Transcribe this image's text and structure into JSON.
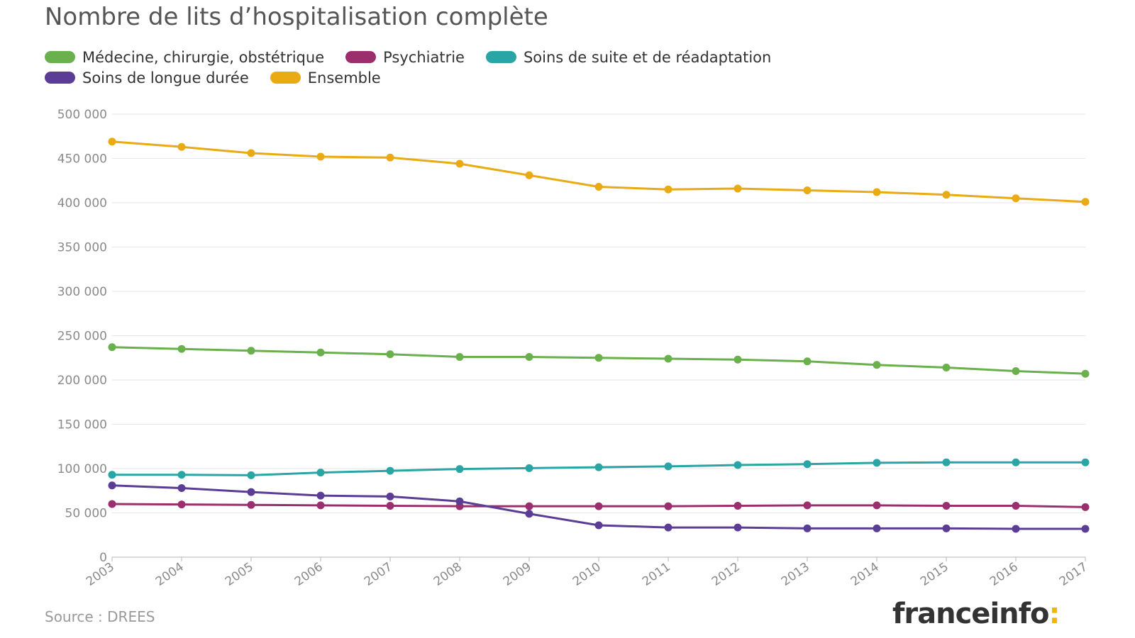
{
  "chart_data": {
    "type": "line",
    "title": "Nombre de lits d’hospitalisation complète",
    "x": [
      "2003",
      "2004",
      "2005",
      "2006",
      "2007",
      "2008",
      "2009",
      "2010",
      "2011",
      "2012",
      "2013",
      "2014",
      "2015",
      "2016",
      "2017"
    ],
    "ylim": [
      0,
      500000
    ],
    "yticks": [
      0,
      50000,
      100000,
      150000,
      200000,
      250000,
      300000,
      350000,
      400000,
      450000,
      500000
    ],
    "ytick_labels": [
      "0",
      "50 000",
      "100 000",
      "150 000",
      "200 000",
      "250 000",
      "300 000",
      "350 000",
      "400 000",
      "450 000",
      "500 000"
    ],
    "grid": true,
    "legend_position": "top-left",
    "series": [
      {
        "name": "Médecine, chirurgie, obstétrique",
        "color": "#6ab04c",
        "values": [
          237000,
          235000,
          233000,
          231000,
          229000,
          226000,
          226000,
          225000,
          224000,
          223000,
          221000,
          217000,
          214000,
          210000,
          207000
        ]
      },
      {
        "name": "Psychiatrie",
        "color": "#9b2f6e",
        "values": [
          60000,
          59500,
          59000,
          58500,
          58000,
          57500,
          57500,
          57500,
          57500,
          58000,
          58500,
          58500,
          58000,
          58000,
          56500
        ]
      },
      {
        "name": "Soins de suite et de réadaptation",
        "color": "#2aa5a5",
        "values": [
          93000,
          93000,
          92500,
          95500,
          97500,
          99500,
          100500,
          101500,
          102500,
          104000,
          105000,
          106500,
          107000,
          107000,
          107000
        ]
      },
      {
        "name": "Soins de longue durée",
        "color": "#5b3d96",
        "values": [
          81000,
          78000,
          73500,
          69500,
          68500,
          63000,
          49000,
          36000,
          33500,
          33500,
          32500,
          32500,
          32500,
          32000,
          32000
        ]
      },
      {
        "name": "Ensemble",
        "color": "#eaaa14",
        "values": [
          469000,
          463000,
          456000,
          452000,
          451000,
          444000,
          431000,
          418000,
          415000,
          416000,
          414000,
          412000,
          409000,
          405000,
          401000
        ]
      }
    ]
  },
  "footer": {
    "source": "Source : DREES",
    "logo_text": "franceinfo",
    "logo_colon": ":"
  }
}
